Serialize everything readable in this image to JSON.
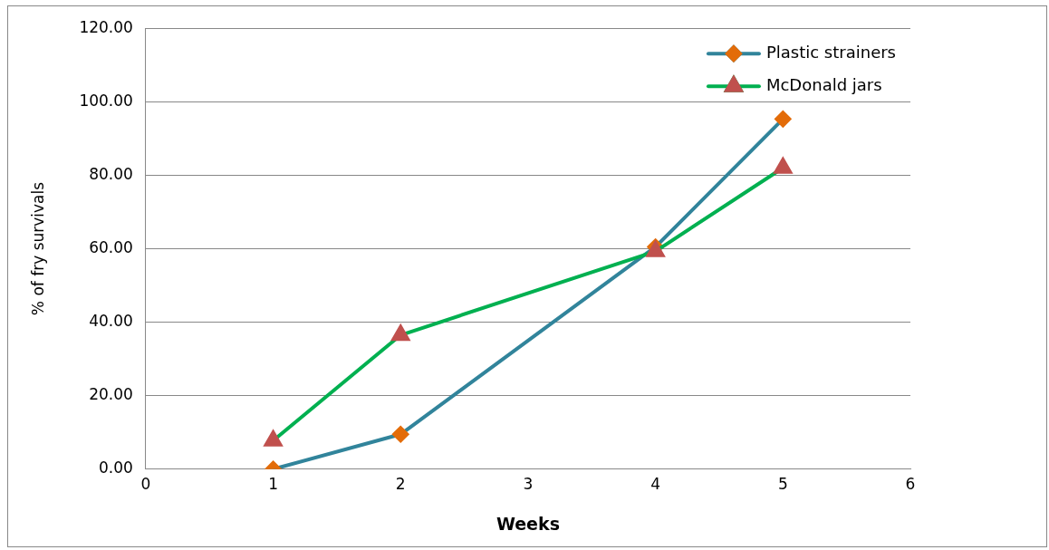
{
  "chart_data": {
    "type": "line",
    "xlabel": "Weeks",
    "ylabel": "% of fry survivals",
    "x": [
      1,
      2,
      4,
      5
    ],
    "series": [
      {
        "name": "Plastic strainers",
        "color": "#31849b",
        "marker": "diamond",
        "colors": [
          "#e36c09",
          "#e36c09",
          "#e36c09",
          "#e36c09"
        ],
        "values": [
          0,
          9.5,
          60.5,
          95.3
        ]
      },
      {
        "name": "McDonald jars",
        "color": "#00b050",
        "marker": "triangle",
        "colors": [
          "#c0504d",
          "#c0504d",
          "#c0504d",
          "#c0504d"
        ],
        "values": [
          7.8,
          36.5,
          59.3,
          82
        ]
      }
    ],
    "xlim": [
      0,
      6
    ],
    "xticks": [
      0,
      1,
      2,
      3,
      4,
      5,
      6
    ],
    "ylim": [
      0,
      120
    ],
    "yticks": [
      {
        "value": 0,
        "label": "0.00"
      },
      {
        "value": 20,
        "label": "20.00"
      },
      {
        "value": 40,
        "label": "40.00"
      },
      {
        "value": 60,
        "label": "60.00"
      },
      {
        "value": 80,
        "label": "80.00"
      },
      {
        "value": 100,
        "label": "100.00"
      },
      {
        "value": 120,
        "label": "120.00"
      }
    ],
    "grid": "y",
    "legend": "top right"
  }
}
